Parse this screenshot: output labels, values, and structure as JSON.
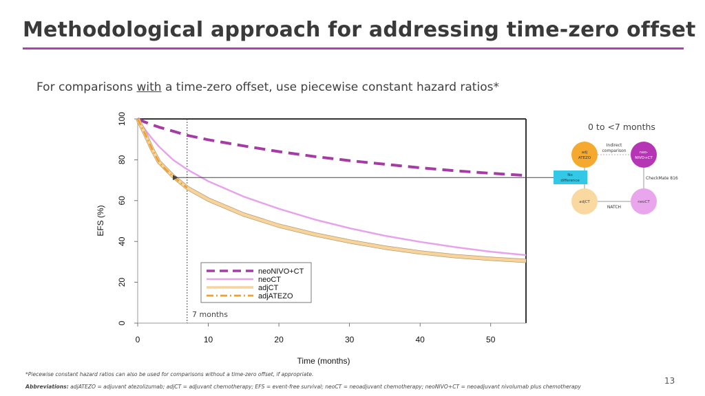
{
  "title": "Methodological approach for addressing time-zero offset",
  "subtitle": {
    "prefix": "For comparisons ",
    "underlined": "with",
    "suffix": " a time-zero offset, use piecewise constant hazard ratios*"
  },
  "colors": {
    "accent": "#b23cb4",
    "neoNIVO_CT": "#a63ba6",
    "neoCT": "#e6a3ec",
    "adjCT": "#f7d49c",
    "adjATEZO": "#f0a030",
    "no_difference_box": "#33c8e6"
  },
  "chart_data": {
    "type": "line",
    "xlabel": "Time (months)",
    "ylabel": "EFS (%)",
    "xlim": [
      0,
      55
    ],
    "ylim": [
      0,
      100
    ],
    "xticks": [
      0,
      10,
      20,
      30,
      40,
      50
    ],
    "yticks": [
      0,
      20,
      40,
      60,
      80,
      100
    ],
    "grid": false,
    "legend_position": "lower-center",
    "series": [
      {
        "name": "neoNIVO+CT",
        "style": "dashed",
        "x": [
          0,
          1,
          2,
          3,
          5,
          7,
          10,
          15,
          20,
          25,
          30,
          35,
          40,
          45,
          50,
          55
        ],
        "y": [
          100,
          98.5,
          97.2,
          96.0,
          94.0,
          92.0,
          89.8,
          86.8,
          84.0,
          81.6,
          79.6,
          77.8,
          76.1,
          74.6,
          73.4,
          72.3
        ]
      },
      {
        "name": "neoCT",
        "style": "solid",
        "x": [
          0,
          1,
          2,
          3,
          5,
          7,
          10,
          15,
          20,
          25,
          30,
          35,
          40,
          45,
          50,
          55
        ],
        "y": [
          100,
          95.0,
          90.5,
          86.5,
          80.0,
          75.3,
          69.5,
          62.0,
          56.0,
          50.8,
          46.5,
          42.8,
          39.8,
          37.2,
          35.0,
          33.3
        ]
      },
      {
        "name": "adjCT",
        "style": "solid-thick",
        "x": [
          0,
          1,
          2,
          3,
          5,
          7,
          10,
          15,
          20,
          25,
          30,
          35,
          40,
          45,
          50,
          55
        ],
        "y": [
          100,
          93.0,
          85.5,
          79.0,
          72.0,
          66.3,
          60.5,
          53.2,
          47.7,
          43.5,
          40.0,
          37.0,
          34.6,
          32.8,
          31.5,
          30.5
        ]
      },
      {
        "name": "adjATEZO",
        "style": "dash-dot",
        "x": [
          0,
          1,
          2,
          3,
          4,
          5,
          6,
          7
        ],
        "y": [
          100,
          93.0,
          85.5,
          79.0,
          75.2,
          72.0,
          69.0,
          66.3
        ]
      }
    ],
    "annotations": {
      "vline_label": "7 months",
      "vline_x": 7,
      "arrow_y": 71.3
    }
  },
  "network_diagram": {
    "title": "0 to <7 months",
    "indirect_label_1": "Indirect",
    "indirect_label_2": "comparison",
    "node_adj_atezo_1": "adj",
    "node_adj_atezo_2": "ATEZO",
    "node_neo_nivo_1": "neo-",
    "node_neo_nivo_2": "NIVO+CT",
    "no_diff_1": "No",
    "no_diff_2": "difference",
    "checkmate_label": "CheckMate 816",
    "node_adjct": "adjCT",
    "node_neoct": "neoCT",
    "natch_label": "NATCH"
  },
  "footnote": "*Piecewise constant hazard ratios can also be used for comparisons without a time-zero offset, if appropriate.",
  "abbreviations": {
    "label": "Abbreviations:",
    "text": " adjATEZO = adjuvant atezolizumab; adjCT = adjuvant chemotherapy; EFS = event-free survival; neoCT = neoadjuvant chemotherapy; neoNIVO+CT = neoadjuvant nivolumab plus chemotherapy"
  },
  "page_number": "13"
}
